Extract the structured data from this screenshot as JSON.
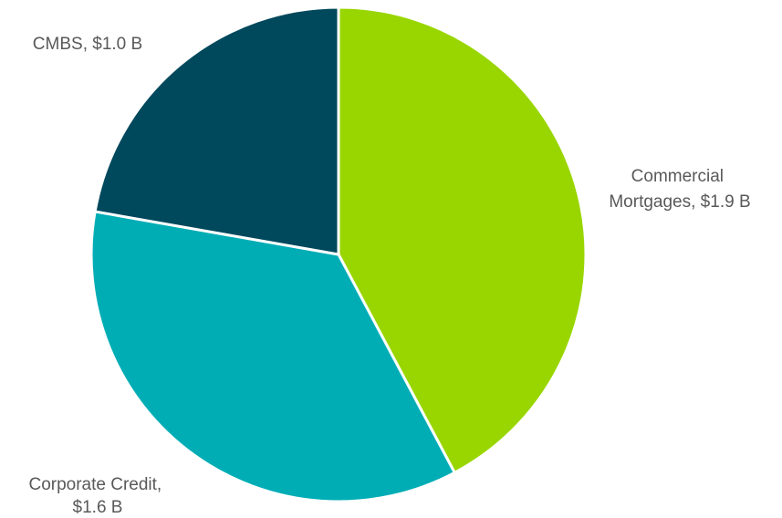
{
  "chart_data": {
    "type": "pie",
    "categories": [
      "Commercial Mortgages",
      "Corporate Credit",
      "CMBS"
    ],
    "values": [
      1.9,
      1.6,
      1.0
    ],
    "unit": "$B",
    "colors": [
      "#99d600",
      "#00adb5",
      "#00485c"
    ],
    "start_angle_deg": 0,
    "direction": "clockwise",
    "legend": "none",
    "labels": [
      {
        "lines": [
          "Commercial",
          "Mortgages, $1.9 B"
        ]
      },
      {
        "lines": [
          "Corporate Credit,",
          "$1.6 B"
        ]
      },
      {
        "lines": [
          "CMBS, $1.0 B"
        ]
      }
    ]
  }
}
